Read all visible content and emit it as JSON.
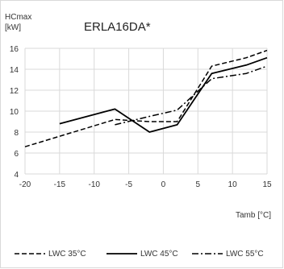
{
  "chart_data": {
    "type": "line",
    "title": "ERLA16DA*",
    "ylabel": [
      "HCmax",
      "[kW]"
    ],
    "xlabel": "Tamb [°C]",
    "xlim": [
      -20,
      15
    ],
    "ylim": [
      4,
      16
    ],
    "x_ticks": [
      -20,
      -15,
      -10,
      -5,
      0,
      5,
      10,
      15
    ],
    "y_ticks": [
      4,
      6,
      8,
      10,
      12,
      14,
      16
    ],
    "grid": true,
    "legend_position": "bottom",
    "series": [
      {
        "name": "LWC 35°C",
        "dash": "dashed",
        "x": [
          -20,
          -7,
          -2,
          2,
          7,
          12,
          15
        ],
        "y": [
          6.6,
          9.2,
          9.0,
          9.0,
          14.3,
          15.1,
          15.8
        ]
      },
      {
        "name": "LWC 45°C",
        "dash": "solid",
        "x": [
          -15,
          -7,
          -2,
          2,
          7,
          12,
          15
        ],
        "y": [
          8.8,
          10.2,
          8.0,
          8.7,
          13.6,
          14.4,
          15.1
        ]
      },
      {
        "name": "LWC 55°C",
        "dash": "dashdot",
        "x": [
          -7,
          -2,
          2,
          7,
          12,
          15
        ],
        "y": [
          8.7,
          9.5,
          10.1,
          13.1,
          13.6,
          14.3
        ]
      }
    ]
  }
}
